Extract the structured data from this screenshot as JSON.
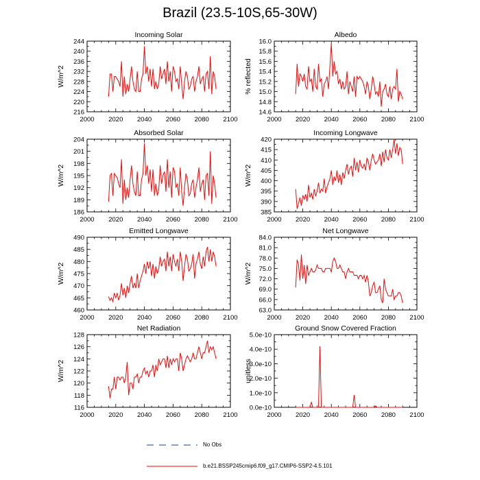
{
  "title": "Brazil (23.5-10S,65-30W)",
  "legend": {
    "obs_label": "No Obs",
    "model_label": "b.e21.BSSP245cmip6.f09_g17.CMIP6-SSP2-4.5.101",
    "model_color": "#ff0000",
    "obs_color": "#1f3b9c"
  },
  "chart_data": [
    {
      "type": "line",
      "title": "Incoming Solar",
      "ylabel": "W/m^2",
      "xlim": [
        2000,
        2100
      ],
      "ylim": [
        216,
        244
      ],
      "xticks": [
        2000,
        2020,
        2040,
        2060,
        2080,
        2100
      ],
      "yticks": [
        216,
        220,
        224,
        228,
        232,
        236,
        240,
        244
      ],
      "ytick_labels": [
        "216",
        "220",
        "224",
        "228",
        "232",
        "236",
        "240",
        "244"
      ],
      "series": [
        {
          "name": "b.e21.BSSP245cmip6.f09_g17.CMIP6-SSP2-4.5.101",
          "x_start": 2015,
          "values": [
            222,
            231,
            231,
            224,
            230,
            230,
            229,
            228,
            226,
            236,
            222,
            230,
            223,
            227,
            224,
            229,
            234,
            228,
            225,
            224,
            232,
            224,
            224,
            229,
            231,
            242,
            231,
            234,
            228,
            233,
            226,
            233,
            225,
            228,
            225,
            227,
            234,
            229,
            231,
            233,
            227,
            236,
            228,
            232,
            224,
            234,
            232,
            228,
            229,
            225,
            234,
            227,
            221,
            228,
            232,
            230,
            225,
            226,
            229,
            230,
            224,
            228,
            230,
            234,
            227,
            229,
            230,
            224,
            231,
            232,
            225,
            238,
            223,
            232,
            230,
            225
          ]
        }
      ]
    },
    {
      "type": "line",
      "title": "Albedo",
      "ylabel": "% reflected",
      "xlim": [
        2000,
        2100
      ],
      "ylim": [
        14.6,
        16.0
      ],
      "xticks": [
        2000,
        2020,
        2040,
        2060,
        2080,
        2100
      ],
      "yticks": [
        14.6,
        14.8,
        15.0,
        15.2,
        15.4,
        15.6,
        15.8,
        16.0
      ],
      "ytick_labels": [
        "14.6",
        "14.8",
        "15.0",
        "15.2",
        "15.4",
        "15.6",
        "15.8",
        "16.0"
      ],
      "series": [
        {
          "name": "b.e21.BSSP245cmip6.f09_g17.CMIP6-SSP2-4.5.101",
          "x_start": 2015,
          "values": [
            14.95,
            15.55,
            15.1,
            15.35,
            15.3,
            15.2,
            15.35,
            15.1,
            15.05,
            15.5,
            15.2,
            15.25,
            15.0,
            15.45,
            15.1,
            15.05,
            15.55,
            15.2,
            15.25,
            14.9,
            15.15,
            15.2,
            15.3,
            15.05,
            15.5,
            15.95,
            15.3,
            15.6,
            15.35,
            15.4,
            15.15,
            15.25,
            15.05,
            15.2,
            15.05,
            15.1,
            15.4,
            14.95,
            15.2,
            15.1,
            15.0,
            15.3,
            14.9,
            15.3,
            15.25,
            15.3,
            15.25,
            15.2,
            15.1,
            14.95,
            15.2,
            15.1,
            14.85,
            15.05,
            15.3,
            15.15,
            14.95,
            15.0,
            14.9,
            15.2,
            14.7,
            15.0,
            15.05,
            15.15,
            14.95,
            14.9,
            15.1,
            14.85,
            15.05,
            15.1,
            15.05,
            15.45,
            14.8,
            15.0,
            14.95,
            14.85
          ]
        }
      ]
    },
    {
      "type": "line",
      "title": "Absorbed Solar",
      "ylabel": "W/m^2",
      "xlim": [
        2000,
        2100
      ],
      "ylim": [
        186,
        204
      ],
      "xticks": [
        2000,
        2020,
        2040,
        2060,
        2080,
        2100
      ],
      "yticks": [
        186,
        189,
        192,
        195,
        198,
        201,
        204
      ],
      "ytick_labels": [
        "186",
        "189",
        "192",
        "195",
        "198",
        "201",
        "204"
      ],
      "series": [
        {
          "name": "b.e21.BSSP245cmip6.f09_g17.CMIP6-SSP2-4.5.101",
          "x_start": 2015,
          "values": [
            188.5,
            195,
            195.5,
            190,
            195.5,
            195,
            194.5,
            193,
            192,
            199,
            188,
            194,
            189,
            192,
            189.5,
            194,
            197.5,
            193,
            191,
            190,
            196,
            190,
            190,
            194,
            195.5,
            203,
            195,
            197.5,
            193,
            196.5,
            191,
            196.5,
            190,
            193,
            190,
            191.5,
            197.5,
            193,
            195,
            196,
            191,
            199,
            192,
            196,
            189.5,
            197,
            196,
            192,
            193,
            190,
            197,
            191,
            187.5,
            192,
            195.5,
            194,
            190,
            190.5,
            193,
            194,
            189.5,
            192,
            194,
            197,
            191,
            193,
            194,
            189,
            195,
            195.5,
            190,
            201,
            188,
            195,
            193,
            189.5
          ]
        }
      ]
    },
    {
      "type": "line",
      "title": "Incoming Longwave",
      "ylabel": "W/m^2",
      "xlim": [
        2000,
        2100
      ],
      "ylim": [
        385,
        420
      ],
      "xticks": [
        2000,
        2020,
        2040,
        2060,
        2080,
        2100
      ],
      "yticks": [
        385,
        390,
        395,
        400,
        405,
        410,
        415,
        420
      ],
      "ytick_labels": [
        "385",
        "390",
        "395",
        "400",
        "405",
        "410",
        "415",
        "420"
      ],
      "series": [
        {
          "name": "b.e21.BSSP245cmip6.f09_g17.CMIP6-SSP2-4.5.101",
          "x_start": 2015,
          "values": [
            396,
            386.5,
            389,
            392,
            388,
            393,
            391,
            393.5,
            390,
            398,
            392,
            394,
            391,
            396,
            392.5,
            395,
            399,
            394,
            396,
            395,
            401,
            394,
            397,
            399,
            401,
            405,
            398,
            402,
            400,
            405,
            399,
            403,
            398,
            404,
            401,
            405,
            408,
            403,
            406,
            407,
            402,
            411,
            405,
            409,
            404,
            410,
            407,
            406,
            408,
            405,
            411,
            409,
            405,
            410,
            413,
            410,
            408,
            409,
            410,
            413,
            407,
            414,
            409,
            415,
            411,
            410,
            415,
            411,
            415,
            420,
            413,
            418,
            412,
            416,
            415,
            408
          ]
        }
      ]
    },
    {
      "type": "line",
      "title": "Emitted Longwave",
      "ylabel": "W/m^2",
      "xlim": [
        2000,
        2100
      ],
      "ylim": [
        460,
        490
      ],
      "xticks": [
        2000,
        2020,
        2040,
        2060,
        2080,
        2100
      ],
      "yticks": [
        460,
        465,
        470,
        475,
        480,
        485,
        490
      ],
      "ytick_labels": [
        "460",
        "465",
        "470",
        "475",
        "480",
        "485",
        "490"
      ],
      "series": [
        {
          "name": "b.e21.BSSP245cmip6.f09_g17.CMIP6-SSP2-4.5.101",
          "x_start": 2015,
          "values": [
            465.5,
            464,
            465,
            463.5,
            467,
            465,
            467,
            464,
            466,
            471,
            466,
            469,
            465,
            470,
            467,
            471,
            474,
            469,
            471,
            469,
            475,
            469,
            472,
            474,
            476,
            479,
            475,
            480,
            477,
            480,
            474,
            479,
            473,
            478,
            475,
            477,
            482,
            478,
            480,
            481,
            476,
            484,
            478,
            482,
            476,
            483,
            480,
            478,
            481,
            476,
            484,
            480,
            472,
            478,
            483,
            481,
            476,
            477,
            479,
            483,
            473,
            479,
            481,
            484,
            479,
            477,
            482,
            478,
            484,
            486,
            480,
            485,
            480,
            484,
            482,
            478
          ]
        }
      ]
    },
    {
      "type": "line",
      "title": "Net Longwave",
      "ylabel": "W/m^2",
      "xlim": [
        2000,
        2100
      ],
      "ylim": [
        63.0,
        84.0
      ],
      "xticks": [
        2000,
        2020,
        2040,
        2060,
        2080,
        2100
      ],
      "yticks": [
        63.0,
        66.0,
        69.0,
        72.0,
        75.0,
        78.0,
        81.0,
        84.0
      ],
      "ytick_labels": [
        "63.0",
        "66.0",
        "69.0",
        "72.0",
        "75.0",
        "78.0",
        "81.0",
        "84.0"
      ],
      "series": [
        {
          "name": "b.e21.BSSP245cmip6.f09_g17.CMIP6-SSP2-4.5.101",
          "x_start": 2015,
          "values": [
            69.5,
            77.5,
            76,
            71.5,
            79,
            72,
            76,
            70.5,
            76,
            73,
            74,
            75,
            74,
            74,
            74.5,
            76,
            75,
            75,
            75,
            74,
            74,
            75,
            75,
            75,
            75,
            74,
            77,
            78,
            77,
            75,
            75,
            76,
            75,
            74,
            74,
            72,
            74,
            75,
            74,
            74,
            74,
            73,
            73,
            73,
            72,
            73,
            73,
            72,
            73,
            71,
            73,
            71,
            67,
            68,
            70,
            71,
            68,
            68,
            69,
            70,
            66,
            65,
            72,
            69,
            68,
            67,
            67,
            67,
            69,
            66,
            67,
            67,
            68,
            68,
            67,
            65
          ]
        }
      ]
    },
    {
      "type": "line",
      "title": "Net Radiation",
      "ylabel": "W/m^2",
      "xlim": [
        2000,
        2100
      ],
      "ylim": [
        116,
        128
      ],
      "xticks": [
        2000,
        2020,
        2040,
        2060,
        2080,
        2100
      ],
      "yticks": [
        116,
        118,
        120,
        122,
        124,
        126,
        128
      ],
      "ytick_labels": [
        "116",
        "118",
        "120",
        "122",
        "124",
        "126",
        "128"
      ],
      "series": [
        {
          "name": "b.e21.BSSP245cmip6.f09_g17.CMIP6-SSP2-4.5.101",
          "x_start": 2015,
          "values": [
            119.5,
            117.5,
            119,
            119,
            121,
            119,
            121,
            121,
            120.5,
            121,
            121,
            120,
            121,
            123.5,
            118,
            120,
            120,
            119,
            121,
            121,
            121.5,
            120,
            121,
            121,
            122,
            122.5,
            121.5,
            122,
            121,
            122,
            122,
            123,
            121,
            123,
            122,
            124,
            123,
            123.5,
            124,
            124,
            122.5,
            124.5,
            122.5,
            124,
            123,
            124,
            123.5,
            124,
            124,
            122,
            125,
            124,
            122,
            123,
            124,
            124.5,
            124,
            123.5,
            124,
            125,
            124,
            124,
            125,
            126,
            125,
            124,
            125,
            125,
            126,
            127,
            125,
            126,
            125.5,
            126,
            125,
            124
          ]
        }
      ]
    },
    {
      "type": "line",
      "title": "Ground Snow Covered Fraction",
      "ylabel": "unitless",
      "xlim": [
        2000,
        2100
      ],
      "ylim": [
        0,
        5e-10
      ],
      "xticks": [
        2000,
        2020,
        2040,
        2060,
        2080,
        2100
      ],
      "yticks": [
        0,
        1e-10,
        2e-10,
        3e-10,
        4e-10,
        5e-10
      ],
      "ytick_labels": [
        "0.0e-10",
        "1.0e-10",
        "2.0e-10",
        "3.0e-10",
        "4.0e-10",
        "5.0e-10"
      ],
      "series": [
        {
          "name": "b.e21.BSSP245cmip6.f09_g17.CMIP6-SSP2-4.5.101",
          "x_start": 2015,
          "values": [
            0,
            0,
            0,
            0,
            0,
            0,
            0,
            0,
            0,
            0,
            0,
            3.5e-11,
            0,
            0,
            0,
            0,
            0,
            4.2e-10,
            0,
            0,
            0,
            0,
            0,
            0,
            0,
            0,
            0,
            0,
            0,
            0,
            0,
            0,
            0,
            0,
            0,
            0,
            0,
            0,
            0,
            0,
            0,
            8.5e-11,
            0,
            0,
            0,
            0,
            0,
            0,
            0,
            0,
            0,
            0,
            0,
            0,
            0,
            0,
            1e-11,
            0,
            0,
            0,
            0,
            0,
            0,
            0,
            0,
            0,
            0,
            0,
            0,
            0,
            0,
            0,
            0,
            0,
            0,
            0
          ]
        }
      ]
    }
  ]
}
